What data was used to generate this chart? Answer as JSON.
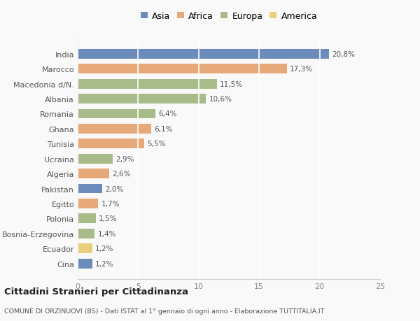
{
  "countries": [
    "India",
    "Marocco",
    "Macedonia d/N.",
    "Albania",
    "Romania",
    "Ghana",
    "Tunisia",
    "Ucraina",
    "Algeria",
    "Pakistan",
    "Egitto",
    "Polonia",
    "Bosnia-Erzegovina",
    "Ecuador",
    "Cina"
  ],
  "values": [
    20.8,
    17.3,
    11.5,
    10.6,
    6.4,
    6.1,
    5.5,
    2.9,
    2.6,
    2.0,
    1.7,
    1.5,
    1.4,
    1.2,
    1.2
  ],
  "labels": [
    "20,8%",
    "17,3%",
    "11,5%",
    "10,6%",
    "6,4%",
    "6,1%",
    "5,5%",
    "2,9%",
    "2,6%",
    "2,0%",
    "1,7%",
    "1,5%",
    "1,4%",
    "1,2%",
    "1,2%"
  ],
  "continents": [
    "Asia",
    "Africa",
    "Europa",
    "Europa",
    "Europa",
    "Africa",
    "Africa",
    "Europa",
    "Africa",
    "Asia",
    "Africa",
    "Europa",
    "Europa",
    "America",
    "Asia"
  ],
  "continent_colors": {
    "Asia": "#6b8cba",
    "Africa": "#e8a97a",
    "Europa": "#a8bc8a",
    "America": "#e8d07a"
  },
  "legend_order": [
    "Asia",
    "Africa",
    "Europa",
    "America"
  ],
  "xlim": [
    0,
    25
  ],
  "xticks": [
    0,
    5,
    10,
    15,
    20,
    25
  ],
  "title": "Cittadini Stranieri per Cittadinanza",
  "subtitle": "COMUNE DI ORZINUOVI (BS) - Dati ISTAT al 1° gennaio di ogni anno - Elaborazione TUTTITALIA.IT",
  "background_color": "#f9f9f9",
  "bar_height": 0.65,
  "grid_color": "#ffffff",
  "spine_color": "#cccccc",
  "label_color": "#555555",
  "ytick_color": "#555555",
  "xtick_color": "#888888"
}
